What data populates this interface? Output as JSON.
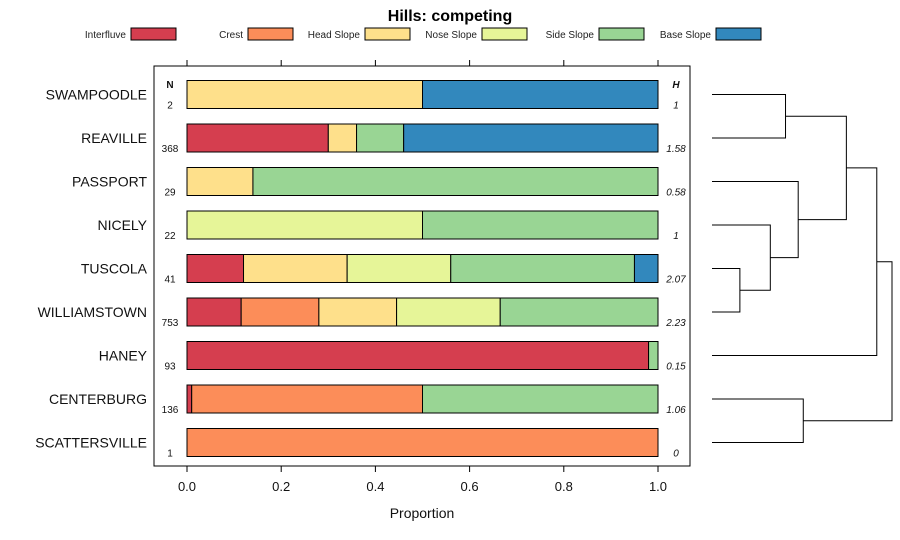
{
  "chart_data": {
    "type": "bar",
    "orientation": "horizontal",
    "stacked": true,
    "title": "Hills: competing",
    "xlabel": "Proportion",
    "ylabel": "",
    "xlim": [
      0,
      1
    ],
    "xticks": [
      "0.0",
      "0.2",
      "0.4",
      "0.6",
      "0.8",
      "1.0"
    ],
    "n_header": "N",
    "h_header": "H",
    "legend_placement": "top",
    "series": [
      {
        "name": "Interfluve",
        "color": "#d53e4f"
      },
      {
        "name": "Crest",
        "color": "#fc8d59"
      },
      {
        "name": "Head Slope",
        "color": "#fee08b"
      },
      {
        "name": "Nose Slope",
        "color": "#e6f598"
      },
      {
        "name": "Side Slope",
        "color": "#99d594"
      },
      {
        "name": "Base Slope",
        "color": "#3288bd"
      }
    ],
    "categories": [
      "SWAMPOODLE",
      "REAVILLE",
      "PASSPORT",
      "NICELY",
      "TUSCOLA",
      "WILLIAMSTOWN",
      "HANEY",
      "CENTERBURG",
      "SCATTERSVILLE"
    ],
    "n_values": [
      "2",
      "368",
      "29",
      "22",
      "41",
      "753",
      "93",
      "136",
      "1"
    ],
    "h_values": [
      "1",
      "1.58",
      "0.58",
      "1",
      "2.07",
      "2.23",
      "0.15",
      "1.06",
      "0"
    ],
    "proportions": [
      [
        0,
        0,
        0.5,
        0,
        0,
        0.5
      ],
      [
        0.3,
        0,
        0.06,
        0,
        0.1,
        0.54
      ],
      [
        0,
        0,
        0.14,
        0,
        0.86,
        0
      ],
      [
        0,
        0,
        0,
        0.5,
        0.5,
        0
      ],
      [
        0.12,
        0,
        0.22,
        0.22,
        0.39,
        0.05
      ],
      [
        0.115,
        0.165,
        0.165,
        0.22,
        0.335,
        0
      ],
      [
        0.98,
        0,
        0,
        0,
        0.02,
        0
      ],
      [
        0.01,
        0.49,
        0,
        0,
        0.5,
        0
      ],
      [
        0,
        1,
        0,
        0,
        0,
        0
      ]
    ],
    "dendrogram": {
      "merges": [
        [
          0,
          1
        ],
        [
          4,
          5
        ],
        [
          3,
          "m1"
        ],
        [
          2,
          "m2"
        ],
        [
          "m0",
          "m3"
        ],
        [
          7,
          8
        ],
        [
          "m4",
          6
        ],
        [
          "m6",
          "m5"
        ]
      ],
      "heights": [
        0.29,
        0.11,
        0.23,
        0.34,
        0.53,
        0.36,
        0.65,
        0.71
      ]
    }
  }
}
